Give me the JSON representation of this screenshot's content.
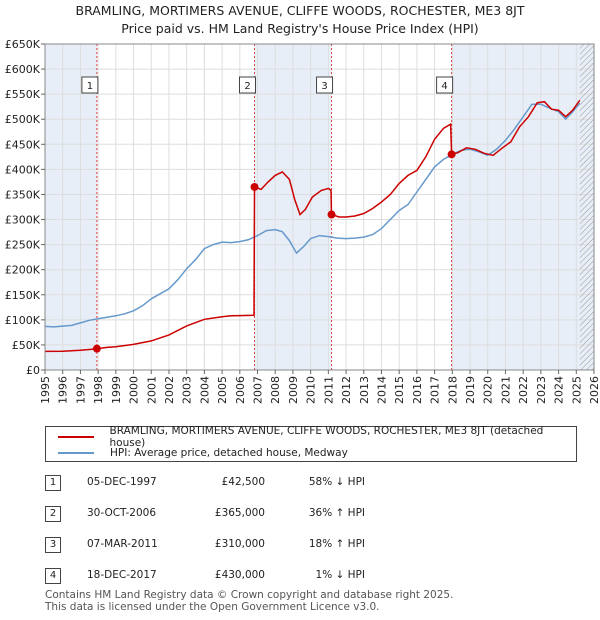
{
  "title_line1": "BRAMLING, MORTIMERS AVENUE, CLIFFE WOODS, ROCHESTER, ME3 8JT",
  "title_line2": "Price paid vs. HM Land Registry's House Price Index (HPI)",
  "colors": {
    "property": "#cc0000",
    "hpi": "#6699cc",
    "band": "#e8eef7",
    "grid": "#dddddd"
  },
  "legend": {
    "property": "BRAMLING, MORTIMERS AVENUE, CLIFFE WOODS, ROCHESTER, ME3 8JT (detached house)",
    "hpi": "HPI: Average price, detached house, Medway"
  },
  "transactions": [
    {
      "num": "1",
      "date": "05-DEC-1997",
      "price": "£42,500",
      "hpi": "58% ↓ HPI"
    },
    {
      "num": "2",
      "date": "30-OCT-2006",
      "price": "£365,000",
      "hpi": "36% ↑ HPI"
    },
    {
      "num": "3",
      "date": "07-MAR-2011",
      "price": "£310,000",
      "hpi": "18% ↑ HPI"
    },
    {
      "num": "4",
      "date": "18-DEC-2017",
      "price": "£430,000",
      "hpi": "1% ↓ HPI"
    }
  ],
  "footer_line1": "Contains HM Land Registry data © Crown copyright and database right 2025.",
  "footer_line2": "This data is licensed under the Open Government Licence v3.0.",
  "chart_data": {
    "type": "line",
    "title": "Price paid vs. HM Land Registry's House Price Index (HPI)",
    "xlim": [
      1995,
      2026
    ],
    "ylim": [
      0,
      650000
    ],
    "x_ticks": [
      1995,
      1996,
      1997,
      1998,
      1999,
      2000,
      2001,
      2002,
      2003,
      2004,
      2005,
      2006,
      2007,
      2008,
      2009,
      2010,
      2011,
      2012,
      2013,
      2014,
      2015,
      2016,
      2017,
      2018,
      2019,
      2020,
      2021,
      2022,
      2023,
      2024,
      2025,
      2026
    ],
    "y_ticks": [
      {
        "value": 0,
        "label": "£0"
      },
      {
        "value": 50000,
        "label": "£50K"
      },
      {
        "value": 100000,
        "label": "£100K"
      },
      {
        "value": 150000,
        "label": "£150K"
      },
      {
        "value": 200000,
        "label": "£200K"
      },
      {
        "value": 250000,
        "label": "£250K"
      },
      {
        "value": 300000,
        "label": "£300K"
      },
      {
        "value": 350000,
        "label": "£350K"
      },
      {
        "value": 400000,
        "label": "£400K"
      },
      {
        "value": 450000,
        "label": "£450K"
      },
      {
        "value": 500000,
        "label": "£500K"
      },
      {
        "value": 550000,
        "label": "£550K"
      },
      {
        "value": 600000,
        "label": "£600K"
      },
      {
        "value": 650000,
        "label": "£650K"
      }
    ],
    "shaded_ranges": [
      [
        1995.0,
        1997.93
      ],
      [
        2006.83,
        2011.18
      ],
      [
        2017.96,
        2026.0
      ]
    ],
    "hatched_from": 2025.2,
    "sales": [
      {
        "label": "1",
        "x": 1997.93,
        "y": 42500
      },
      {
        "label": "2",
        "x": 2006.83,
        "y": 365000
      },
      {
        "label": "3",
        "x": 2011.18,
        "y": 310000
      },
      {
        "label": "4",
        "x": 2017.96,
        "y": 430000
      }
    ],
    "series": [
      {
        "name": "BRAMLING, MORTIMERS AVENUE, CLIFFE WOODS, ROCHESTER, ME3 8JT (detached house)",
        "color": "#cc0000",
        "points": [
          [
            1995.0,
            37000
          ],
          [
            1996.0,
            37500
          ],
          [
            1997.0,
            39500
          ],
          [
            1997.9,
            42000
          ],
          [
            1997.93,
            42500
          ],
          [
            1998.5,
            45000
          ],
          [
            1999.0,
            46500
          ],
          [
            2000.0,
            51000
          ],
          [
            2001.0,
            58000
          ],
          [
            2002.0,
            70000
          ],
          [
            2003.0,
            88000
          ],
          [
            2004.0,
            101000
          ],
          [
            2005.0,
            106000
          ],
          [
            2005.5,
            108000
          ],
          [
            2006.0,
            108500
          ],
          [
            2006.8,
            109000
          ],
          [
            2006.83,
            365000
          ],
          [
            2007.2,
            360000
          ],
          [
            2007.6,
            375000
          ],
          [
            2008.0,
            388000
          ],
          [
            2008.4,
            395000
          ],
          [
            2008.8,
            380000
          ],
          [
            2009.1,
            340000
          ],
          [
            2009.4,
            310000
          ],
          [
            2009.7,
            320000
          ],
          [
            2010.1,
            345000
          ],
          [
            2010.6,
            358000
          ],
          [
            2011.0,
            362000
          ],
          [
            2011.15,
            358000
          ],
          [
            2011.18,
            310000
          ],
          [
            2011.6,
            305000
          ],
          [
            2012.0,
            305000
          ],
          [
            2012.5,
            307000
          ],
          [
            2013.0,
            312000
          ],
          [
            2013.5,
            322000
          ],
          [
            2014.0,
            335000
          ],
          [
            2014.5,
            350000
          ],
          [
            2015.0,
            372000
          ],
          [
            2015.5,
            388000
          ],
          [
            2016.0,
            398000
          ],
          [
            2016.5,
            425000
          ],
          [
            2017.0,
            460000
          ],
          [
            2017.5,
            482000
          ],
          [
            2017.9,
            490000
          ],
          [
            2017.96,
            430000
          ],
          [
            2018.3,
            433000
          ],
          [
            2018.8,
            443000
          ],
          [
            2019.3,
            440000
          ],
          [
            2019.8,
            432000
          ],
          [
            2020.3,
            428000
          ],
          [
            2020.8,
            442000
          ],
          [
            2021.3,
            455000
          ],
          [
            2021.8,
            485000
          ],
          [
            2022.3,
            505000
          ],
          [
            2022.8,
            533000
          ],
          [
            2023.2,
            535000
          ],
          [
            2023.6,
            520000
          ],
          [
            2024.0,
            518000
          ],
          [
            2024.4,
            505000
          ],
          [
            2024.8,
            518000
          ],
          [
            2025.2,
            538000
          ]
        ]
      },
      {
        "name": "HPI: Average price, detached house, Medway",
        "color": "#6699cc",
        "points": [
          [
            1995.0,
            87000
          ],
          [
            1995.5,
            86000
          ],
          [
            1996.0,
            87500
          ],
          [
            1996.5,
            89000
          ],
          [
            1997.0,
            94000
          ],
          [
            1997.5,
            99000
          ],
          [
            1998.0,
            102000
          ],
          [
            1998.5,
            105000
          ],
          [
            1999.0,
            108000
          ],
          [
            1999.5,
            112000
          ],
          [
            2000.0,
            118000
          ],
          [
            2000.5,
            128000
          ],
          [
            2001.0,
            142000
          ],
          [
            2001.5,
            152000
          ],
          [
            2002.0,
            162000
          ],
          [
            2002.5,
            180000
          ],
          [
            2003.0,
            202000
          ],
          [
            2003.5,
            220000
          ],
          [
            2004.0,
            242000
          ],
          [
            2004.5,
            250000
          ],
          [
            2005.0,
            255000
          ],
          [
            2005.5,
            254000
          ],
          [
            2006.0,
            256000
          ],
          [
            2006.5,
            260000
          ],
          [
            2007.0,
            268000
          ],
          [
            2007.5,
            278000
          ],
          [
            2008.0,
            280000
          ],
          [
            2008.4,
            276000
          ],
          [
            2008.8,
            258000
          ],
          [
            2009.2,
            233000
          ],
          [
            2009.6,
            246000
          ],
          [
            2010.0,
            262000
          ],
          [
            2010.5,
            268000
          ],
          [
            2011.0,
            266000
          ],
          [
            2011.5,
            263000
          ],
          [
            2012.0,
            262000
          ],
          [
            2012.5,
            263000
          ],
          [
            2013.0,
            265000
          ],
          [
            2013.5,
            270000
          ],
          [
            2014.0,
            282000
          ],
          [
            2014.5,
            300000
          ],
          [
            2015.0,
            318000
          ],
          [
            2015.5,
            330000
          ],
          [
            2016.0,
            355000
          ],
          [
            2016.5,
            380000
          ],
          [
            2017.0,
            405000
          ],
          [
            2017.5,
            420000
          ],
          [
            2018.0,
            430000
          ],
          [
            2018.5,
            438000
          ],
          [
            2019.0,
            440000
          ],
          [
            2019.5,
            435000
          ],
          [
            2020.0,
            428000
          ],
          [
            2020.5,
            440000
          ],
          [
            2021.0,
            458000
          ],
          [
            2021.5,
            480000
          ],
          [
            2022.0,
            505000
          ],
          [
            2022.5,
            530000
          ],
          [
            2023.0,
            530000
          ],
          [
            2023.5,
            522000
          ],
          [
            2024.0,
            515000
          ],
          [
            2024.4,
            500000
          ],
          [
            2024.8,
            515000
          ],
          [
            2025.2,
            532000
          ]
        ]
      }
    ]
  }
}
